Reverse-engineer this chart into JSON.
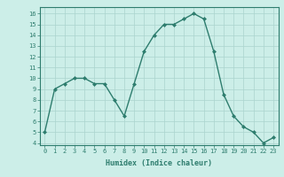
{
  "x": [
    0,
    1,
    2,
    3,
    4,
    5,
    6,
    7,
    8,
    9,
    10,
    11,
    12,
    13,
    14,
    15,
    16,
    17,
    18,
    19,
    20,
    21,
    22,
    23
  ],
  "y": [
    5,
    9,
    9.5,
    10,
    10,
    9.5,
    9.5,
    8,
    6.5,
    9.5,
    12.5,
    14,
    15,
    15,
    15.5,
    16,
    15.5,
    12.5,
    8.5,
    6.5,
    5.5,
    5,
    4,
    4.5
  ],
  "line_color": "#2e7d6e",
  "marker_color": "#2e7d6e",
  "bg_color": "#cceee8",
  "grid_color": "#aad4ce",
  "xlabel": "Humidex (Indice chaleur)",
  "xlim": [
    -0.5,
    23.5
  ],
  "ylim": [
    3.8,
    16.6
  ],
  "yticks": [
    4,
    5,
    6,
    7,
    8,
    9,
    10,
    11,
    12,
    13,
    14,
    15,
    16
  ],
  "xtick_labels": [
    "0",
    "1",
    "2",
    "3",
    "4",
    "5",
    "6",
    "7",
    "8",
    "9",
    "10",
    "11",
    "12",
    "13",
    "14",
    "15",
    "16",
    "17",
    "18",
    "19",
    "20",
    "21",
    "22",
    "23"
  ],
  "tick_fontsize": 5.0,
  "xlabel_fontsize": 6.0,
  "linewidth": 1.0,
  "markersize": 2.0
}
